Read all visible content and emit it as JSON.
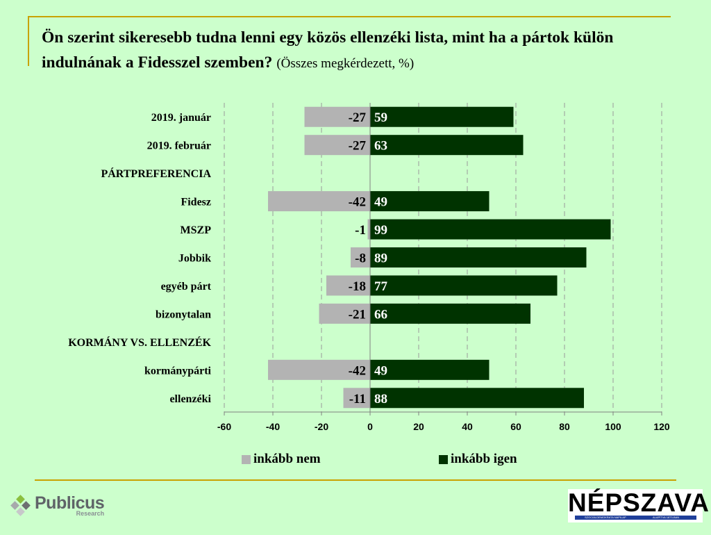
{
  "title": "Ön szerint sikeresebb tudna lenni egy közös ellenzéki lista, mint ha a pártok külön indulnának a Fidesszel szemben?",
  "subtitle": "(Összes megkérdezett, %)",
  "chart_data": {
    "type": "bar",
    "orientation": "horizontal",
    "categories": [
      "2019. január",
      "2019. február",
      "PÁRTPREFERENCIA",
      "Fidesz",
      "MSZP",
      "Jobbik",
      "egyéb párt",
      "bizonytalan",
      "KORMÁNY VS. ELLENZÉK",
      "kormánypárti",
      "ellenzéki"
    ],
    "series": [
      {
        "name": "inkább nem",
        "color": "#b3b3b3",
        "values": [
          -27,
          -27,
          null,
          -42,
          -1,
          -8,
          -18,
          -21,
          null,
          -42,
          -11
        ]
      },
      {
        "name": "inkább igen",
        "color": "#003300",
        "values": [
          59,
          63,
          null,
          49,
          99,
          89,
          77,
          66,
          null,
          49,
          88
        ]
      }
    ],
    "xlim": [
      -60,
      120
    ],
    "xticks": [
      -60,
      -40,
      -20,
      0,
      20,
      40,
      60,
      80,
      100,
      120
    ],
    "grid": true,
    "legend": "bottom"
  },
  "legend": {
    "neg": "inkább nem",
    "pos": "inkább igen"
  },
  "logos": {
    "publicus": "Publicus",
    "publicus_sub": "Research",
    "nepszava": "NÉPSZAVA",
    "nepszava_tag_left": "SZOCIÁLDEMOKRATA NAPILAP",
    "nepszava_tag_right": "ALAPÍTVA 1873-BAN"
  },
  "colors": {
    "background": "#ccffcc",
    "accent": "#c8a200",
    "neg": "#b3b3b3",
    "pos": "#003300"
  }
}
